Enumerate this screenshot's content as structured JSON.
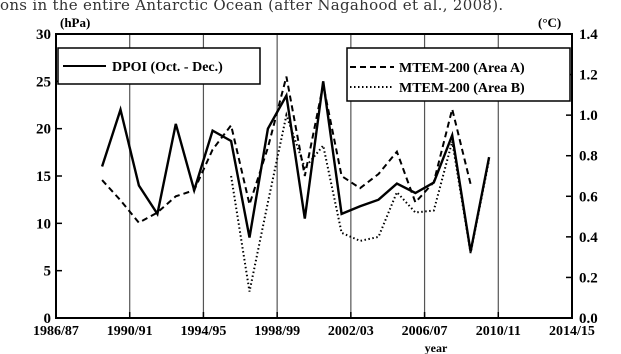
{
  "caption": "ons in the entire Antarctic Ocean (after Nagahood et al., 2008).",
  "chart_data": {
    "type": "line",
    "y_left_unit": "(hPa)",
    "y_right_unit": "(°C)",
    "xlabel": "year",
    "xlim": [
      1986.5,
      2014.5
    ],
    "ylim_left": [
      0,
      30
    ],
    "ylim_right": [
      0.0,
      1.4
    ],
    "x_ticks": [
      {
        "x": 1986.5,
        "label": "1986/87"
      },
      {
        "x": 1990.5,
        "label": "1990/91"
      },
      {
        "x": 1994.5,
        "label": "1994/95"
      },
      {
        "x": 1998.5,
        "label": "1998/99"
      },
      {
        "x": 2002.5,
        "label": "2002/03"
      },
      {
        "x": 2006.5,
        "label": "2006/07"
      },
      {
        "x": 2010.5,
        "label": "2010/11"
      },
      {
        "x": 2014.5,
        "label": "2014/15"
      }
    ],
    "y_left_ticks": [
      0,
      5,
      10,
      15,
      20,
      25,
      30
    ],
    "y_right_ticks": [
      "0.0",
      "0.2",
      "0.4",
      "0.6",
      "0.8",
      "1.0",
      "1.2",
      "1.4"
    ],
    "vertical_gridlines_at": [
      1990.5,
      1994.5,
      1998.5,
      2002.5,
      2006.5,
      2010.5
    ],
    "legend_left": "DPOI (Oct. - Dec.)",
    "legend_right": [
      "MTEM-200 (Area A)",
      "MTEM-200 (Area B)"
    ],
    "series": [
      {
        "name": "DPOI (Oct. - Dec.)",
        "axis": "left",
        "style": "solid",
        "points": [
          [
            1989,
            16
          ],
          [
            1990,
            22
          ],
          [
            1991,
            14
          ],
          [
            1992,
            11
          ],
          [
            1993,
            20.5
          ],
          [
            1994,
            13.5
          ],
          [
            1995,
            19.8
          ],
          [
            1996,
            18.7
          ],
          [
            1997,
            8.5
          ],
          [
            1998,
            20
          ],
          [
            1999,
            23.5
          ],
          [
            2000,
            10.5
          ],
          [
            2001,
            25
          ],
          [
            2002,
            11
          ],
          [
            2003,
            11.8
          ],
          [
            2004,
            12.5
          ],
          [
            2005,
            14.2
          ],
          [
            2006,
            13.2
          ],
          [
            2007,
            14.3
          ],
          [
            2008,
            19.3
          ],
          [
            2009,
            7
          ],
          [
            2010,
            17
          ]
        ]
      },
      {
        "name": "MTEM-200 (Area A)",
        "axis": "right",
        "style": "dashed",
        "points": [
          [
            1989,
            0.68
          ],
          [
            1990,
            0.58
          ],
          [
            1991,
            0.47
          ],
          [
            1992,
            0.52
          ],
          [
            1993,
            0.6
          ],
          [
            1994,
            0.63
          ],
          [
            1995,
            0.83
          ],
          [
            1996,
            0.95
          ],
          [
            1997,
            0.56
          ],
          [
            1998,
            0.84
          ],
          [
            1999,
            1.19
          ],
          [
            2000,
            0.7
          ],
          [
            2001,
            1.15
          ],
          [
            2002,
            0.7
          ],
          [
            2003,
            0.64
          ],
          [
            2004,
            0.71
          ],
          [
            2005,
            0.82
          ],
          [
            2006,
            0.57
          ],
          [
            2007,
            0.67
          ],
          [
            2008,
            1.03
          ],
          [
            2009,
            0.66
          ]
        ]
      },
      {
        "name": "MTEM-200 (Area B)",
        "axis": "right",
        "style": "dotted",
        "points": [
          [
            1996,
            0.7
          ],
          [
            1997,
            0.13
          ],
          [
            1998,
            0.57
          ],
          [
            1999,
            1.0
          ],
          [
            2000,
            0.74
          ],
          [
            2001,
            0.85
          ],
          [
            2002,
            0.42
          ],
          [
            2003,
            0.38
          ],
          [
            2004,
            0.4
          ],
          [
            2005,
            0.62
          ],
          [
            2006,
            0.52
          ],
          [
            2007,
            0.53
          ],
          [
            2008,
            0.87
          ],
          [
            2009,
            0.32
          ],
          [
            2010,
            0.78
          ]
        ]
      }
    ]
  }
}
